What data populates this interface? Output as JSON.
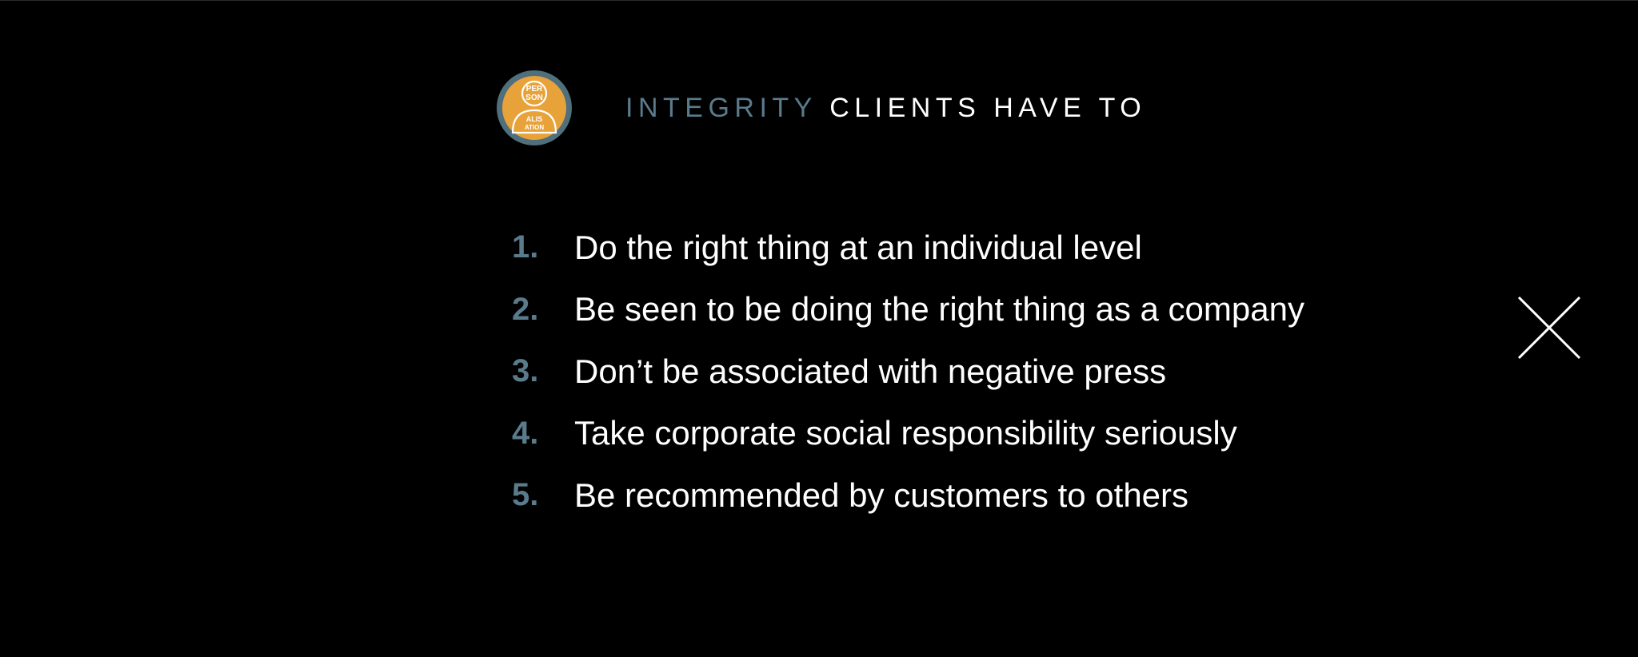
{
  "header": {
    "accent": "INTEGRITY",
    "rest": "CLIENTS HAVE TO"
  },
  "logo": {
    "text_top": "PER SON",
    "text_bottom": "ALISATION"
  },
  "items": [
    {
      "number": "1.",
      "text": "Do the right thing at an individual level"
    },
    {
      "number": "2.",
      "text": "Be seen to be doing the right thing as a company"
    },
    {
      "number": "3.",
      "text": "Don’t be associated with negative press"
    },
    {
      "number": "4.",
      "text": "Take corporate social responsibility seriously"
    },
    {
      "number": "5.",
      "text": "Be recommended by customers to others"
    }
  ],
  "close": {
    "icon": "close-icon"
  },
  "colors": {
    "background": "#000000",
    "accent": "#5a7b8c",
    "logo_fill": "#e8a23a",
    "logo_ring": "#4f6f7d",
    "text": "#ffffff"
  }
}
